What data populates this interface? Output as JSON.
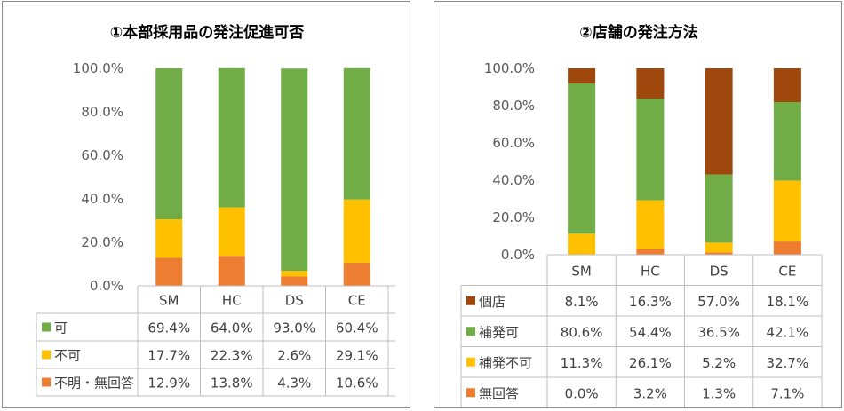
{
  "chart_data": [
    {
      "type": "bar",
      "stacked": true,
      "title": "①本部採用品の発注促進可否",
      "categories": [
        "SM",
        "HC",
        "DS",
        "CE"
      ],
      "ylim": [
        0,
        100
      ],
      "y_ticks": [
        "0.0%",
        "20.0%",
        "40.0%",
        "60.0%",
        "80.0%",
        "100.0%"
      ],
      "grid": false,
      "legend": "data-table",
      "series": [
        {
          "name": "可",
          "color": "#70ad47",
          "values": [
            69.4,
            64.0,
            93.0,
            60.4
          ],
          "labels": [
            "69.4%",
            "64.0%",
            "93.0%",
            "60.4%"
          ]
        },
        {
          "name": "不可",
          "color": "#ffc000",
          "values": [
            17.7,
            22.3,
            2.6,
            29.1
          ],
          "labels": [
            "17.7%",
            "22.3%",
            "2.6%",
            "29.1%"
          ]
        },
        {
          "name": "不明・無回答",
          "color": "#ed7d31",
          "values": [
            12.9,
            13.8,
            4.3,
            10.6
          ],
          "labels": [
            "12.9%",
            "13.8%",
            "4.3%",
            "10.6%"
          ]
        }
      ]
    },
    {
      "type": "bar",
      "stacked": true,
      "title": "②店舗の発注方法",
      "categories": [
        "SM",
        "HC",
        "DS",
        "CE"
      ],
      "ylim": [
        0,
        100
      ],
      "y_ticks": [
        "0.0%",
        "20.0%",
        "40.0%",
        "60.0%",
        "80.0%",
        "100.0%"
      ],
      "grid": false,
      "legend": "data-table",
      "series": [
        {
          "name": "個店",
          "color": "#9e480e",
          "values": [
            8.1,
            16.3,
            57.0,
            18.1
          ],
          "labels": [
            "8.1%",
            "16.3%",
            "57.0%",
            "18.1%"
          ]
        },
        {
          "name": "補発可",
          "color": "#70ad47",
          "values": [
            80.6,
            54.4,
            36.5,
            42.1
          ],
          "labels": [
            "80.6%",
            "54.4%",
            "36.5%",
            "42.1%"
          ]
        },
        {
          "name": "補発不可",
          "color": "#ffc000",
          "values": [
            11.3,
            26.1,
            5.2,
            32.7
          ],
          "labels": [
            "11.3%",
            "26.1%",
            "5.2%",
            "32.7%"
          ]
        },
        {
          "name": "無回答",
          "color": "#ed7d31",
          "values": [
            0.0,
            3.2,
            1.3,
            7.1
          ],
          "labels": [
            "0.0%",
            "3.2%",
            "1.3%",
            "7.1%"
          ]
        }
      ]
    }
  ]
}
